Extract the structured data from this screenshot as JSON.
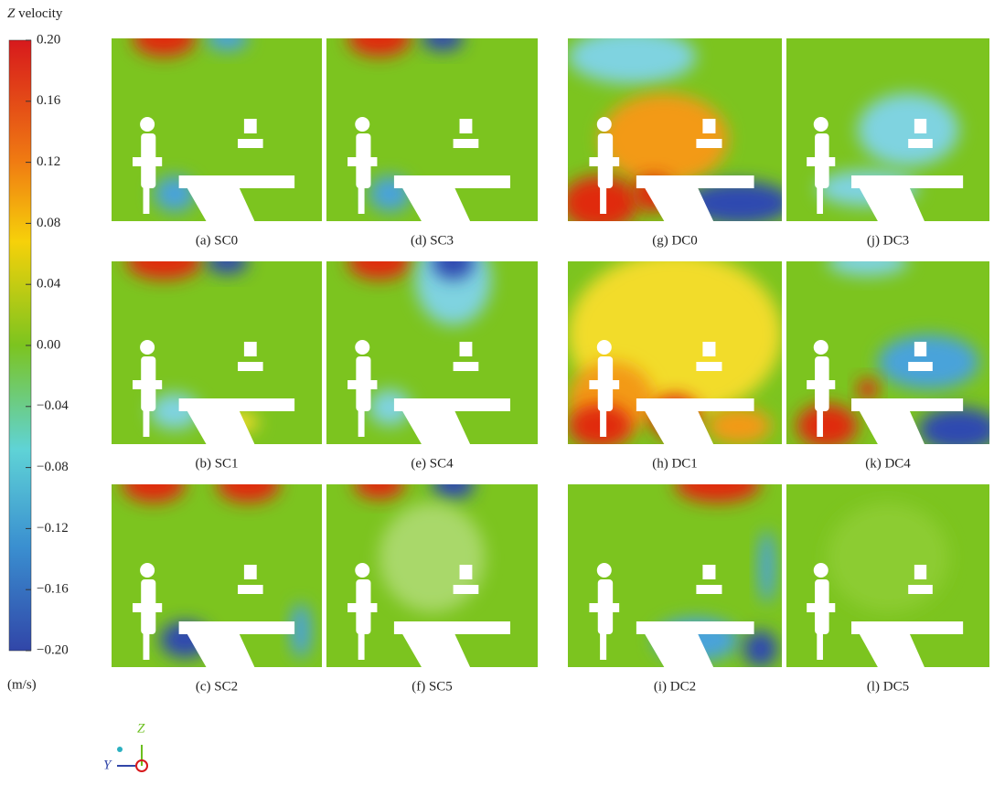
{
  "colorbar": {
    "variable": "Z",
    "label": "velocity",
    "unit": "(m/s)",
    "range": [
      -0.2,
      0.2
    ],
    "ticks": [
      {
        "value": 0.2,
        "label": "0.20"
      },
      {
        "value": 0.16,
        "label": "0.16"
      },
      {
        "value": 0.12,
        "label": "0.12"
      },
      {
        "value": 0.08,
        "label": "0.08"
      },
      {
        "value": 0.04,
        "label": "0.04"
      },
      {
        "value": 0,
        "label": "0.00"
      },
      {
        "value": -0.04,
        "label": "−0.04"
      },
      {
        "value": -0.08,
        "label": "−0.08"
      },
      {
        "value": -0.12,
        "label": "−0.12"
      },
      {
        "value": -0.16,
        "label": "−0.16"
      },
      {
        "value": -0.2,
        "label": "−0.20"
      }
    ]
  },
  "panels": [
    {
      "caption": "(a) SC0"
    },
    {
      "caption": "(b) SC1"
    },
    {
      "caption": "(c) SC2"
    },
    {
      "caption": "(d) SC3"
    },
    {
      "caption": "(e) SC4"
    },
    {
      "caption": "(f) SC5"
    },
    {
      "caption": "(g) DC0"
    },
    {
      "caption": "(h) DC1"
    },
    {
      "caption": "(i) DC2"
    },
    {
      "caption": "(j) DC3"
    },
    {
      "caption": "(k) DC4"
    },
    {
      "caption": "(l) DC5"
    }
  ],
  "axes": {
    "z": "Z",
    "y": "Y"
  }
}
